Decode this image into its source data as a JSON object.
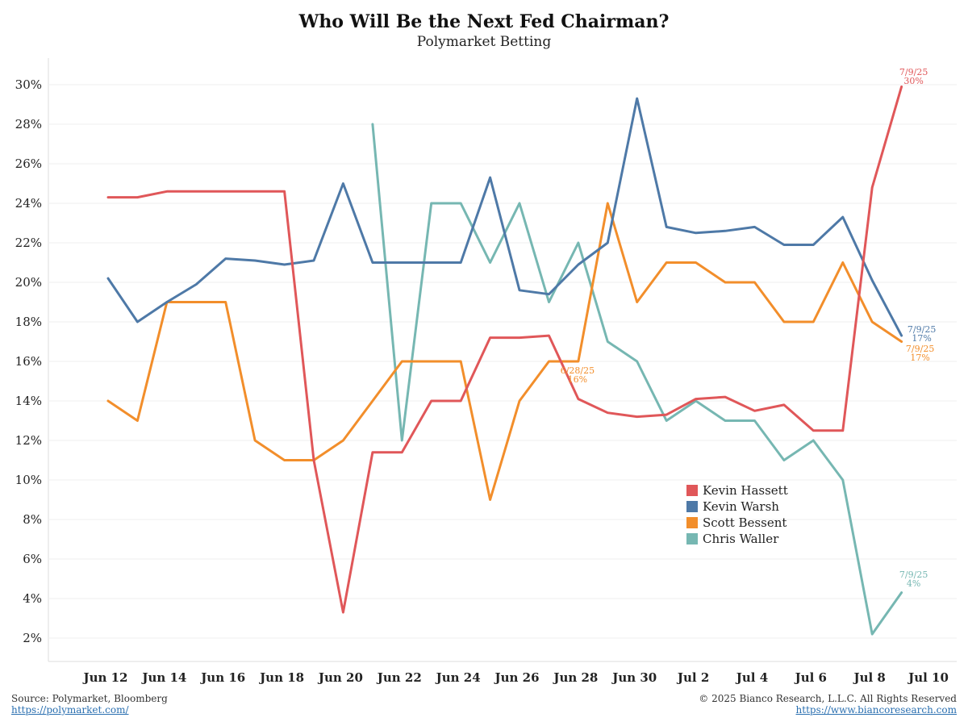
{
  "chart_data": {
    "type": "line",
    "title": "Who Will Be the Next Fed Chairman?",
    "subtitle": "Polymarket Betting",
    "xlabel": "",
    "ylabel": "",
    "x": [
      "2025-06-12",
      "2025-06-13",
      "2025-06-14",
      "2025-06-15",
      "2025-06-16",
      "2025-06-17",
      "2025-06-18",
      "2025-06-19",
      "2025-06-20",
      "2025-06-21",
      "2025-06-22",
      "2025-06-23",
      "2025-06-24",
      "2025-06-25",
      "2025-06-26",
      "2025-06-27",
      "2025-06-28",
      "2025-06-29",
      "2025-06-30",
      "2025-07-01",
      "2025-07-02",
      "2025-07-03",
      "2025-07-04",
      "2025-07-05",
      "2025-07-06",
      "2025-07-07",
      "2025-07-08",
      "2025-07-09"
    ],
    "x_ticks": [
      "Jun 12",
      "Jun 14",
      "Jun 16",
      "Jun 18",
      "Jun 20",
      "Jun 22",
      "Jun 24",
      "Jun 26",
      "Jun 28",
      "Jun 30",
      "Jul 2",
      "Jul 4",
      "Jul 6",
      "Jul 8",
      "Jul 10"
    ],
    "y_ticks": [
      "2%",
      "4%",
      "6%",
      "8%",
      "10%",
      "12%",
      "14%",
      "16%",
      "18%",
      "20%",
      "22%",
      "24%",
      "26%",
      "28%",
      "30%"
    ],
    "ylim": [
      1,
      31
    ],
    "grid": "horizontal",
    "legend_placement": "lower-right",
    "series": [
      {
        "name": "Kevin Hassett",
        "color": "#e05759",
        "values": [
          24.3,
          24.3,
          24.6,
          24.6,
          24.6,
          24.6,
          24.6,
          11.0,
          3.3,
          11.4,
          11.4,
          14.0,
          14.0,
          17.2,
          17.2,
          17.3,
          14.1,
          13.4,
          13.2,
          13.3,
          14.1,
          14.2,
          13.5,
          13.8,
          12.5,
          12.5,
          24.8,
          29.9
        ]
      },
      {
        "name": "Kevin Warsh",
        "color": "#4e79a7",
        "values": [
          20.2,
          18.0,
          19.0,
          19.9,
          21.2,
          21.1,
          20.9,
          21.1,
          25.0,
          21.0,
          21.0,
          21.0,
          21.0,
          25.3,
          19.6,
          19.4,
          20.9,
          22.0,
          29.3,
          22.8,
          22.5,
          22.6,
          22.8,
          21.9,
          21.9,
          23.3,
          20.1,
          17.3
        ]
      },
      {
        "name": "Scott Bessent",
        "color": "#f28e2b",
        "values": [
          14.0,
          13.0,
          19.0,
          19.0,
          19.0,
          12.0,
          11.0,
          11.0,
          12.0,
          14.0,
          16.0,
          16.0,
          16.0,
          9.0,
          14.0,
          16.0,
          16.0,
          24.0,
          19.0,
          21.0,
          21.0,
          20.0,
          20.0,
          18.0,
          18.0,
          21.0,
          18.0,
          17.0
        ]
      },
      {
        "name": "Chris Waller",
        "color": "#76b7b2",
        "values": [
          null,
          null,
          null,
          null,
          null,
          null,
          null,
          null,
          null,
          28.0,
          12.0,
          24.0,
          24.0,
          21.0,
          24.0,
          19.0,
          22.0,
          17.0,
          16.0,
          13.0,
          14.0,
          13.0,
          13.0,
          11.0,
          12.0,
          10.0,
          2.2,
          4.3
        ]
      }
    ],
    "annotations": [
      {
        "series": "Kevin Hassett",
        "date_label": "7/9/25",
        "value_label": "30%"
      },
      {
        "series": "Kevin Warsh",
        "date_label": "7/9/25",
        "value_label": "17%"
      },
      {
        "series": "Scott Bessent",
        "date_label": "7/9/25",
        "value_label": "17%"
      },
      {
        "series": "Scott Bessent",
        "date_label": "6/28/25",
        "value_label": "16%"
      },
      {
        "series": "Chris Waller",
        "date_label": "7/9/25",
        "value_label": "4%"
      }
    ]
  },
  "footer": {
    "source": "Source: Polymarket, Bloomberg",
    "source_link": "https://polymarket.com/",
    "copyright": "© 2025 Bianco Research, L.L.C. All Rights Reserved",
    "copyright_link": "https://www.biancoresearch.com"
  }
}
